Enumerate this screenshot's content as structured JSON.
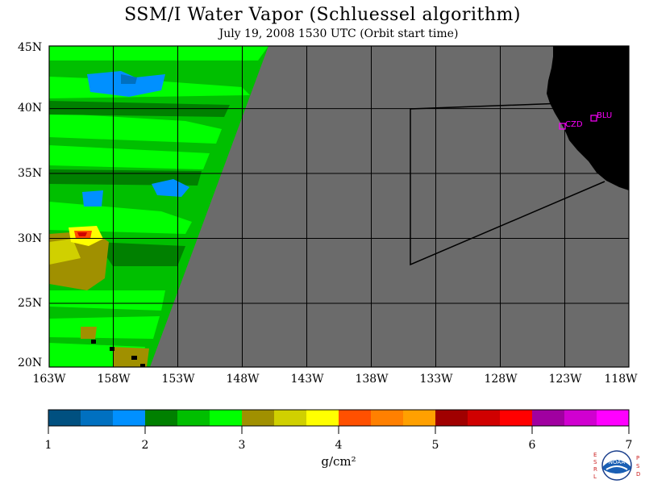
{
  "title": "SSM/I Water Vapor (Schluessel algorithm)",
  "subtitle": "July 19, 2008  1530 UTC  (Orbit start time)",
  "lat_labels": [
    "45N",
    "40N",
    "35N",
    "30N",
    "25N",
    "20N"
  ],
  "lon_labels": [
    "163W",
    "158W",
    "153W",
    "148W",
    "143W",
    "138W",
    "133W",
    "128W",
    "123W",
    "118W"
  ],
  "stations": [
    {
      "label": "CZD"
    },
    {
      "label": "BLU"
    }
  ],
  "colorbar": {
    "ticks": [
      "1",
      "2",
      "3",
      "4",
      "5",
      "6",
      "7"
    ],
    "units": "g/cm²",
    "colors": [
      "#005080",
      "#0070c0",
      "#0090ff",
      "#008000",
      "#00bf00",
      "#00ff00",
      "#a09000",
      "#d0d000",
      "#ffff00",
      "#ff5000",
      "#ff8000",
      "#ffa000",
      "#a00000",
      "#d00000",
      "#ff0000",
      "#a000a0",
      "#d000d0",
      "#ff00ff"
    ]
  },
  "legend_colors": {
    "no_data": "#6b6b6b",
    "land": "#000000",
    "station_marker": "#ff00ff"
  },
  "logo": {
    "left_letters": "ESRL",
    "right_letters": "PSD",
    "text": "NOAA"
  }
}
